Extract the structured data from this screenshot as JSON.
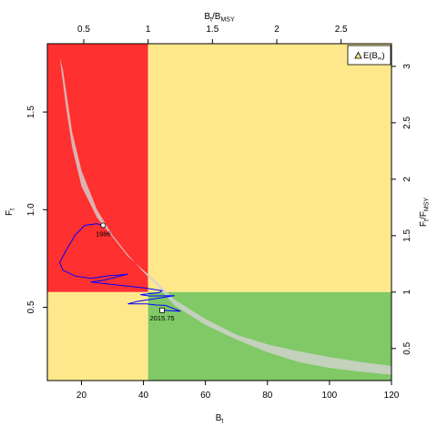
{
  "chart_data": {
    "type": "line",
    "colors": {
      "red": "#ff3030",
      "yellow": "#ffe88c",
      "green": "#80c966",
      "band": "#d3d3d3",
      "trajectory": "#0000ff"
    },
    "axes": {
      "bottom": {
        "label": "B",
        "sub": "t",
        "lim": [
          9,
          120
        ],
        "ticks": [
          20,
          40,
          60,
          80,
          100,
          120
        ]
      },
      "left": {
        "label": "F",
        "sub": "t",
        "lim": [
          0.125,
          1.85
        ],
        "ticks": [
          "0.5",
          "1.0",
          "1.5"
        ]
      },
      "top": {
        "label": "B",
        "sub": "t",
        "mid": "/B",
        "sub2": "MSY",
        "ticks": [
          "0.5",
          "1",
          "1.5",
          "2",
          "2.5"
        ]
      },
      "right": {
        "label": "F",
        "sub": "t",
        "mid": "/F",
        "sub2": "MSY",
        "ticks": [
          "0.5",
          "1",
          "1.5",
          "2",
          "2.5",
          "3"
        ]
      }
    },
    "bmsy": 41.5,
    "fmsy": 0.578,
    "legend": {
      "label": "E(B",
      "sub": "∞",
      "suffix": ")"
    },
    "band": {
      "upper": [
        [
          13,
          1.78
        ],
        [
          15,
          1.53
        ],
        [
          17,
          1.32
        ],
        [
          20,
          1.12
        ],
        [
          25,
          0.96
        ],
        [
          30,
          0.86
        ],
        [
          35,
          0.76
        ],
        [
          40,
          0.69
        ],
        [
          45,
          0.62
        ],
        [
          50,
          0.54
        ],
        [
          60,
          0.44
        ],
        [
          70,
          0.36
        ],
        [
          80,
          0.31
        ],
        [
          90,
          0.275
        ],
        [
          100,
          0.245
        ],
        [
          110,
          0.22
        ],
        [
          120,
          0.2
        ]
      ],
      "lower": [
        [
          14,
          1.72
        ],
        [
          17,
          1.4
        ],
        [
          20,
          1.2
        ],
        [
          25,
          1.0
        ],
        [
          30,
          0.87
        ],
        [
          35,
          0.77
        ],
        [
          40,
          0.68
        ],
        [
          45,
          0.6
        ],
        [
          50,
          0.51
        ],
        [
          55,
          0.46
        ],
        [
          60,
          0.41
        ],
        [
          70,
          0.335
        ],
        [
          80,
          0.27
        ],
        [
          90,
          0.22
        ],
        [
          100,
          0.19
        ],
        [
          110,
          0.17
        ],
        [
          120,
          0.155
        ]
      ]
    },
    "trajectory": [
      [
        27,
        0.92
      ],
      [
        25,
        0.928
      ],
      [
        21,
        0.92
      ],
      [
        18,
        0.87
      ],
      [
        15,
        0.79
      ],
      [
        13,
        0.73
      ],
      [
        14,
        0.69
      ],
      [
        18,
        0.66
      ],
      [
        23,
        0.648
      ],
      [
        29,
        0.662
      ],
      [
        32,
        0.665
      ],
      [
        35,
        0.67
      ],
      [
        27,
        0.638
      ],
      [
        23,
        0.63
      ],
      [
        28,
        0.62
      ],
      [
        40,
        0.6
      ],
      [
        46,
        0.585
      ],
      [
        45,
        0.575
      ],
      [
        39,
        0.565
      ],
      [
        42,
        0.558
      ],
      [
        50,
        0.56
      ],
      [
        38,
        0.53
      ],
      [
        35,
        0.518
      ],
      [
        41,
        0.518
      ],
      [
        44,
        0.512
      ],
      [
        47,
        0.51
      ],
      [
        52,
        0.48
      ],
      [
        46,
        0.485
      ]
    ],
    "start": {
      "x": 27,
      "y": 0.92,
      "label": "1986"
    },
    "end": {
      "x": 46,
      "y": 0.485,
      "label": "2015.75"
    }
  }
}
